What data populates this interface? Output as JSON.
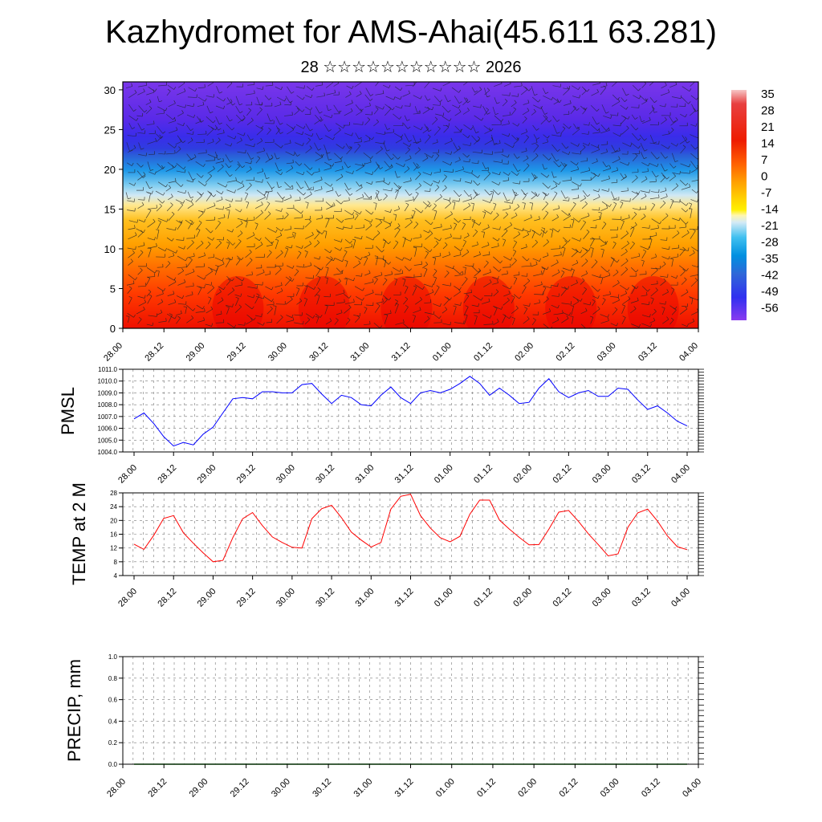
{
  "title": "Kazhydromet for AMS-Ahai(45.611 63.281)",
  "subtitle": "28 ☆☆☆☆☆☆☆☆☆☆☆ 2026",
  "time_labels": [
    "28.00",
    "28.12",
    "29.00",
    "29.12",
    "30.00",
    "30.12",
    "31.00",
    "31.12",
    "01.00",
    "01.12",
    "02.00",
    "02.12",
    "03.00",
    "03.12",
    "04.00"
  ],
  "chart_data": [
    {
      "type": "heatmap",
      "name": "temperature-height-section",
      "title": "Kazhydromet for AMS-Ahai(45.611 63.281)",
      "x_tick_labels": [
        "28.00",
        "28.12",
        "29.00",
        "29.12",
        "30.00",
        "30.12",
        "31.00",
        "31.12",
        "01.00",
        "01.12",
        "02.00",
        "02.12",
        "03.00",
        "03.12",
        "04.00"
      ],
      "y_ticks": [
        0,
        5,
        10,
        15,
        20,
        25,
        30
      ],
      "ylim": [
        0,
        31
      ],
      "colorbar_labels": [
        "35",
        "28",
        "21",
        "14",
        "7",
        "0",
        "-7",
        "-14",
        "-21",
        "-28",
        "-35",
        "-42",
        "-49",
        "-56"
      ],
      "overlay": "wind barbs",
      "approx_temperature_profile": {
        "level_km": [
          0,
          3,
          6,
          9,
          12,
          15,
          17,
          19,
          21,
          22.5,
          24,
          27,
          31
        ],
        "temp_c": [
          24,
          20,
          14,
          7,
          0,
          -10,
          -20,
          -35,
          -48,
          -56,
          -55,
          -53,
          -50
        ]
      }
    },
    {
      "type": "line",
      "name": "PMSL",
      "ylabel": "PMSL",
      "ylim": [
        1004.0,
        1011.0
      ],
      "y_ticks": [
        "1004.0",
        "1005.0",
        "1006.0",
        "1007.0",
        "1008.0",
        "1009.0",
        "1010.0",
        "1011.0"
      ],
      "x_tick_labels": [
        "28.00",
        "28.12",
        "29.00",
        "29.12",
        "30.00",
        "30.12",
        "31.00",
        "31.12",
        "01.00",
        "01.12",
        "02.00",
        "02.12",
        "03.00",
        "03.12",
        "04.00"
      ],
      "x_step_hours": 3,
      "color": "#0000ff",
      "values": [
        1006.8,
        1007.3,
        1006.4,
        1005.3,
        1004.5,
        1004.8,
        1004.6,
        1005.5,
        1006.1,
        1007.3,
        1008.5,
        1008.6,
        1008.5,
        1009.1,
        1009.1,
        1009.0,
        1009.0,
        1009.7,
        1009.8,
        1008.9,
        1008.1,
        1008.8,
        1008.6,
        1008.0,
        1007.9,
        1008.8,
        1009.5,
        1008.6,
        1008.1,
        1009.0,
        1009.2,
        1009.0,
        1009.3,
        1009.8,
        1010.4,
        1009.8,
        1008.8,
        1009.4,
        1008.8,
        1008.1,
        1008.2,
        1009.4,
        1010.2,
        1009.1,
        1008.6,
        1009.0,
        1009.2,
        1008.7,
        1008.7,
        1009.4,
        1009.3,
        1008.4,
        1007.6,
        1007.9,
        1007.3,
        1006.6,
        1006.2
      ]
    },
    {
      "type": "line",
      "name": "TEMP at 2 M",
      "ylabel": "TEMP at 2 M",
      "ylim": [
        4,
        28
      ],
      "y_ticks": [
        "4",
        "8",
        "12",
        "16",
        "20",
        "24",
        "28"
      ],
      "x_tick_labels": [
        "28.00",
        "28.12",
        "29.00",
        "29.12",
        "30.00",
        "30.12",
        "31.00",
        "31.12",
        "01.00",
        "01.12",
        "02.00",
        "02.12",
        "03.00",
        "03.12",
        "04.00"
      ],
      "x_step_hours": 3,
      "color": "#ff0000",
      "values": [
        13.1,
        11.6,
        15.7,
        20.6,
        21.4,
        16.4,
        13.4,
        10.6,
        8.0,
        8.4,
        15.0,
        20.5,
        22.3,
        18.5,
        15.2,
        13.6,
        12.2,
        12.0,
        20.5,
        23.4,
        24.4,
        20.8,
        16.6,
        14.3,
        12.3,
        13.6,
        23.3,
        27.0,
        27.6,
        21.4,
        17.8,
        15.0,
        13.8,
        15.4,
        21.8,
        25.9,
        25.9,
        20.1,
        17.5,
        15.1,
        12.9,
        13.0,
        17.5,
        22.4,
        22.9,
        19.7,
        16.1,
        13.0,
        9.7,
        10.3,
        18.0,
        22.2,
        23.3,
        19.8,
        15.5,
        12.4,
        11.5
      ]
    },
    {
      "type": "line",
      "name": "PRECIP, mm",
      "ylabel": "PRECIP, mm",
      "ylim": [
        0.0,
        1.0
      ],
      "y_ticks": [
        "0.0",
        "0.2",
        "0.4",
        "0.6",
        "0.8",
        "1.0"
      ],
      "x_tick_labels": [
        "28.00",
        "28.12",
        "29.00",
        "29.12",
        "30.00",
        "30.12",
        "31.00",
        "31.12",
        "01.00",
        "01.12",
        "02.00",
        "02.12",
        "03.00",
        "03.12",
        "04.00"
      ],
      "x_step_hours": 3,
      "color": "#008000",
      "values": [
        0,
        0,
        0,
        0,
        0,
        0,
        0,
        0,
        0,
        0,
        0,
        0,
        0,
        0,
        0,
        0,
        0,
        0,
        0,
        0,
        0,
        0,
        0,
        0,
        0,
        0,
        0,
        0,
        0,
        0,
        0,
        0,
        0,
        0,
        0,
        0,
        0,
        0,
        0,
        0,
        0,
        0,
        0,
        0,
        0,
        0,
        0,
        0,
        0,
        0,
        0,
        0,
        0,
        0,
        0,
        0,
        0
      ]
    }
  ]
}
